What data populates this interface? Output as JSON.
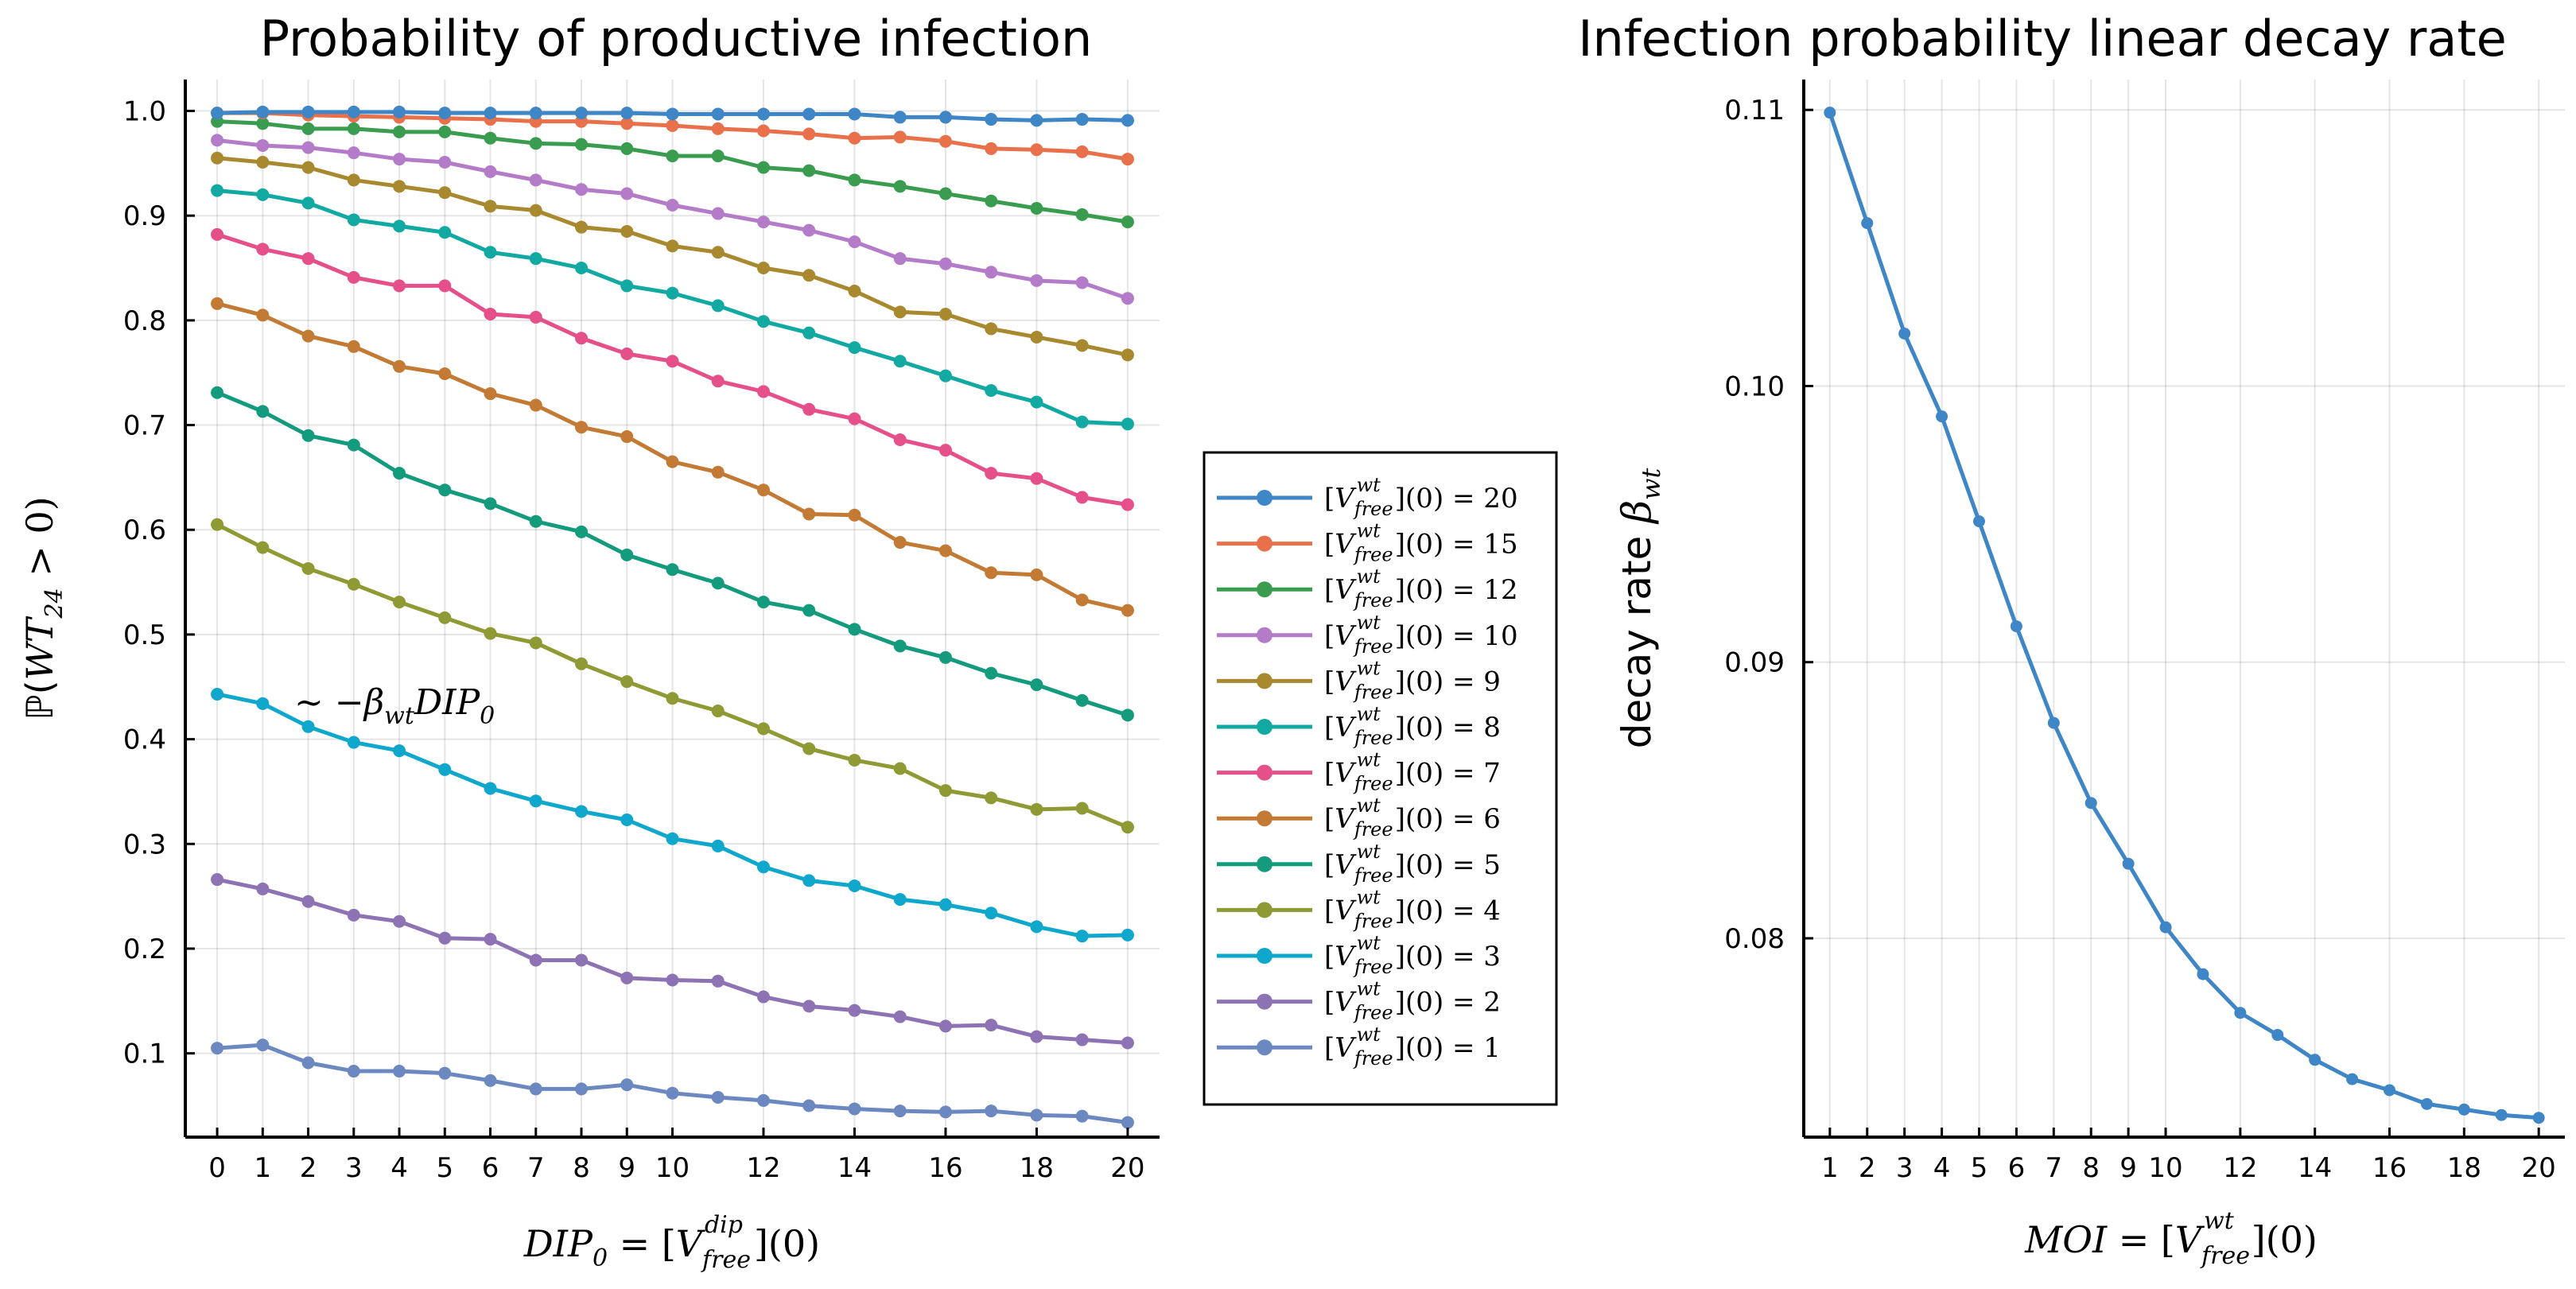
{
  "chart_data": [
    {
      "type": "line",
      "title": "Probability of productive infection",
      "xlabel": "DIP₀ = [V^dip_free](0)",
      "ylabel": "ℙ( WT₂₄ > 0)",
      "annotation": "~ −β_wt DIP₀",
      "xlim": [
        -0.7,
        20.7
      ],
      "ylim": [
        0.02,
        1.03
      ],
      "xticks": [
        0,
        1,
        2,
        3,
        4,
        5,
        6,
        7,
        8,
        9,
        10,
        12,
        14,
        16,
        18,
        20
      ],
      "yticks": [
        0.1,
        0.2,
        0.3,
        0.4,
        0.5,
        0.6,
        0.7,
        0.8,
        0.9,
        1.0
      ],
      "ytick_labels": [
        "0.1",
        "0.2",
        "0.3",
        "0.4",
        "0.5",
        "0.6",
        "0.7",
        "0.8",
        "0.9",
        "1.0"
      ],
      "x": [
        0,
        1,
        2,
        3,
        4,
        5,
        6,
        7,
        8,
        9,
        10,
        11,
        12,
        13,
        14,
        15,
        16,
        17,
        18,
        19,
        20
      ],
      "legend_position": "outside-right",
      "series": [
        {
          "name": "[V^wt_free](0) = 20",
          "color": "#3e86c6",
          "values": [
            0.998,
            0.999,
            0.999,
            0.999,
            0.999,
            0.998,
            0.998,
            0.998,
            0.998,
            0.998,
            0.997,
            0.997,
            0.997,
            0.997,
            0.997,
            0.994,
            0.994,
            0.992,
            0.991,
            0.992,
            0.991
          ]
        },
        {
          "name": "[V^wt_free](0) = 15",
          "color": "#e8704a",
          "values": [
            0.998,
            0.998,
            0.996,
            0.995,
            0.994,
            0.993,
            0.992,
            0.99,
            0.99,
            0.988,
            0.986,
            0.983,
            0.981,
            0.978,
            0.974,
            0.975,
            0.971,
            0.964,
            0.963,
            0.961,
            0.954
          ]
        },
        {
          "name": "[V^wt_free](0) = 12",
          "color": "#399c4e",
          "values": [
            0.99,
            0.988,
            0.983,
            0.983,
            0.98,
            0.98,
            0.974,
            0.969,
            0.968,
            0.964,
            0.957,
            0.957,
            0.946,
            0.943,
            0.934,
            0.928,
            0.921,
            0.914,
            0.907,
            0.901,
            0.894
          ]
        },
        {
          "name": "[V^wt_free](0) = 10",
          "color": "#b47cc8",
          "values": [
            0.972,
            0.967,
            0.965,
            0.96,
            0.954,
            0.951,
            0.942,
            0.934,
            0.925,
            0.921,
            0.91,
            0.902,
            0.894,
            0.886,
            0.875,
            0.859,
            0.854,
            0.846,
            0.838,
            0.836,
            0.821
          ]
        },
        {
          "name": "[V^wt_free](0) = 9",
          "color": "#a8892f",
          "values": [
            0.955,
            0.951,
            0.946,
            0.934,
            0.928,
            0.922,
            0.909,
            0.905,
            0.889,
            0.885,
            0.871,
            0.865,
            0.85,
            0.843,
            0.828,
            0.808,
            0.806,
            0.792,
            0.784,
            0.776,
            0.767
          ]
        },
        {
          "name": "[V^wt_free](0) = 8",
          "color": "#13a9a3",
          "values": [
            0.924,
            0.92,
            0.912,
            0.896,
            0.89,
            0.884,
            0.865,
            0.859,
            0.85,
            0.833,
            0.826,
            0.814,
            0.799,
            0.788,
            0.774,
            0.761,
            0.747,
            0.733,
            0.722,
            0.703,
            0.701
          ]
        },
        {
          "name": "[V^wt_free](0) = 7",
          "color": "#e6508a",
          "values": [
            0.882,
            0.868,
            0.859,
            0.841,
            0.833,
            0.833,
            0.806,
            0.803,
            0.783,
            0.768,
            0.761,
            0.742,
            0.732,
            0.715,
            0.706,
            0.686,
            0.676,
            0.654,
            0.649,
            0.631,
            0.624
          ]
        },
        {
          "name": "[V^wt_free](0) = 6",
          "color": "#c27a34",
          "values": [
            0.816,
            0.805,
            0.785,
            0.775,
            0.756,
            0.749,
            0.73,
            0.719,
            0.698,
            0.689,
            0.665,
            0.655,
            0.638,
            0.615,
            0.614,
            0.588,
            0.58,
            0.559,
            0.557,
            0.533,
            0.523
          ]
        },
        {
          "name": "[V^wt_free](0) = 5",
          "color": "#149a7c",
          "values": [
            0.731,
            0.713,
            0.69,
            0.681,
            0.654,
            0.638,
            0.625,
            0.608,
            0.598,
            0.576,
            0.562,
            0.549,
            0.531,
            0.523,
            0.505,
            0.489,
            0.478,
            0.463,
            0.452,
            0.437,
            0.423
          ]
        },
        {
          "name": "[V^wt_free](0) = 4",
          "color": "#8f9a35",
          "values": [
            0.605,
            0.583,
            0.563,
            0.548,
            0.531,
            0.516,
            0.501,
            0.492,
            0.472,
            0.455,
            0.439,
            0.427,
            0.41,
            0.391,
            0.38,
            0.372,
            0.351,
            0.344,
            0.333,
            0.334,
            0.316
          ]
        },
        {
          "name": "[V^wt_free](0) = 3",
          "color": "#0fa7cb",
          "values": [
            0.443,
            0.434,
            0.412,
            0.397,
            0.389,
            0.371,
            0.353,
            0.341,
            0.331,
            0.323,
            0.305,
            0.298,
            0.278,
            0.265,
            0.26,
            0.247,
            0.242,
            0.234,
            0.221,
            0.212,
            0.213
          ]
        },
        {
          "name": "[V^wt_free](0) = 2",
          "color": "#8e73b4",
          "values": [
            0.266,
            0.257,
            0.245,
            0.232,
            0.226,
            0.21,
            0.209,
            0.189,
            0.189,
            0.172,
            0.17,
            0.169,
            0.154,
            0.145,
            0.141,
            0.135,
            0.126,
            0.127,
            0.116,
            0.113,
            0.11
          ]
        },
        {
          "name": "[V^wt_free](0) = 1",
          "color": "#6c88c0",
          "values": [
            0.105,
            0.108,
            0.091,
            0.083,
            0.083,
            0.081,
            0.074,
            0.066,
            0.066,
            0.07,
            0.062,
            0.058,
            0.055,
            0.05,
            0.047,
            0.045,
            0.044,
            0.045,
            0.041,
            0.04,
            0.034
          ]
        }
      ]
    },
    {
      "type": "line",
      "title": "Infection probability linear decay rate",
      "xlabel": "MOI = [V^wt_free](0)",
      "ylabel": "decay rate  β_wt",
      "xlim": [
        0.3,
        20.7
      ],
      "ylim": [
        0.0728,
        0.1111
      ],
      "xticks": [
        1,
        2,
        3,
        4,
        5,
        6,
        7,
        8,
        9,
        10,
        12,
        14,
        16,
        18,
        20
      ],
      "yticks": [
        0.08,
        0.09,
        0.1,
        0.11
      ],
      "ytick_labels": [
        "0.08",
        "0.09",
        "0.10",
        "0.11"
      ],
      "x": [
        1,
        2,
        3,
        4,
        5,
        6,
        7,
        8,
        9,
        10,
        11,
        12,
        13,
        14,
        15,
        16,
        17,
        18,
        19,
        20
      ],
      "series": [
        {
          "name": "decay rate",
          "color": "#3e86c6",
          "values": [
            0.1099,
            0.1059,
            0.1019,
            0.0989,
            0.0951,
            0.0913,
            0.0878,
            0.0849,
            0.0827,
            0.0804,
            0.0787,
            0.0773,
            0.0765,
            0.0756,
            0.0749,
            0.0745,
            0.074,
            0.0738,
            0.0736,
            0.0735
          ]
        }
      ]
    }
  ]
}
